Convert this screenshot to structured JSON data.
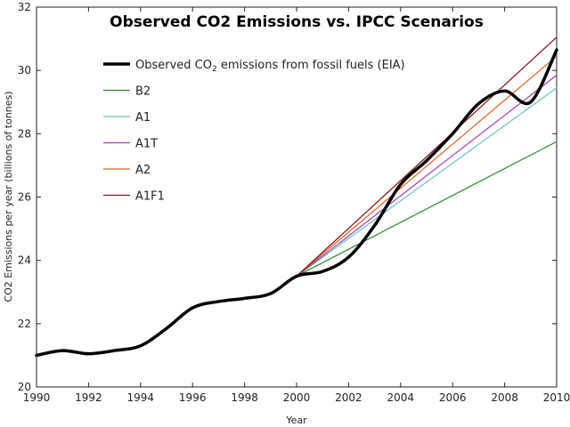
{
  "chart_data": {
    "type": "line",
    "title": "Observed CO2 Emissions vs. IPCC Scenarios",
    "xlabel": "Year",
    "ylabel": "CO2 Emissions per year (billions of tonnes)",
    "xlim": [
      1990,
      2010
    ],
    "ylim": [
      20,
      32
    ],
    "x_ticks": [
      "1990",
      "1992",
      "1994",
      "1996",
      "1998",
      "2000",
      "2002",
      "2004",
      "2006",
      "2008",
      "2010"
    ],
    "y_ticks": [
      "20",
      "22",
      "24",
      "26",
      "28",
      "30",
      "32"
    ],
    "grid": false,
    "legend_position": "top-left",
    "series": [
      {
        "name": "Observed CO2 emissions from fossil fuels (EIA)",
        "legend_main": "Observed CO",
        "legend_sub": "2",
        "legend_rest": " emissions from fossil fuels (EIA)",
        "color": "#000000",
        "x": [
          1990,
          1991,
          1992,
          1993,
          1994,
          1995,
          1996,
          1997,
          1998,
          1999,
          2000,
          2001,
          2002,
          2003,
          2004,
          2005,
          2006,
          2007,
          2008,
          2009,
          2010
        ],
        "y": [
          21.0,
          21.15,
          21.05,
          21.15,
          21.3,
          21.85,
          22.5,
          22.7,
          22.8,
          22.95,
          23.5,
          23.65,
          24.1,
          25.1,
          26.4,
          27.15,
          28.0,
          28.95,
          29.35,
          29.0,
          30.65
        ]
      },
      {
        "name": "B2",
        "color": "#2a8a2a",
        "x": [
          2000,
          2010
        ],
        "y": [
          23.5,
          27.75
        ]
      },
      {
        "name": "A1",
        "color": "#6cc0c8",
        "x": [
          2000,
          2010
        ],
        "y": [
          23.5,
          29.45
        ]
      },
      {
        "name": "A1T",
        "color": "#a040a8",
        "x": [
          2000,
          2010
        ],
        "y": [
          23.5,
          29.85
        ]
      },
      {
        "name": "A2",
        "color": "#e0601a",
        "x": [
          2000,
          2010
        ],
        "y": [
          23.5,
          30.45
        ]
      },
      {
        "name": "A1F1",
        "color": "#7a1010",
        "x": [
          2000,
          2010
        ],
        "y": [
          23.5,
          31.05
        ]
      }
    ]
  }
}
